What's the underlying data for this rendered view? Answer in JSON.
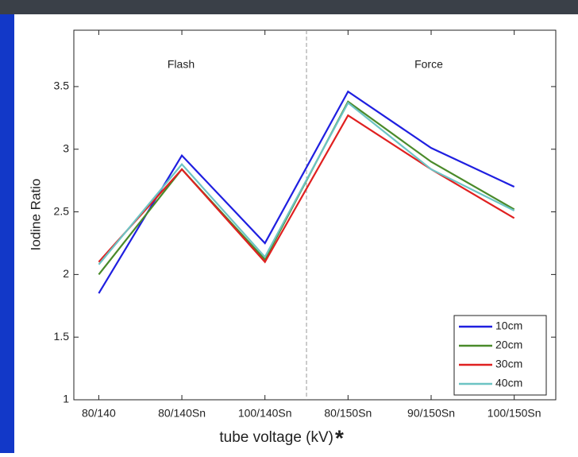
{
  "chart_data": {
    "type": "line",
    "xlabel": "tube voltage (kV)",
    "xlabel_mark": "*",
    "ylabel": "Iodine Ratio",
    "annotations": [
      "Flash",
      "Force"
    ],
    "categories": [
      "80/140",
      "80/140Sn",
      "100/140Sn",
      "80/150Sn",
      "90/150Sn",
      "100/150Sn"
    ],
    "xlim": [
      0.7,
      6.5
    ],
    "divider_x": 3.5,
    "series": [
      {
        "name": "10cm",
        "color": "#1f1fe0",
        "values": [
          1.85,
          2.95,
          2.25,
          3.46,
          3.01,
          2.7
        ]
      },
      {
        "name": "20cm",
        "color": "#4a8a2a",
        "values": [
          2.0,
          2.84,
          2.12,
          3.38,
          2.9,
          2.52
        ]
      },
      {
        "name": "30cm",
        "color": "#e02020",
        "values": [
          2.1,
          2.84,
          2.1,
          3.27,
          2.84,
          2.45
        ]
      },
      {
        "name": "40cm",
        "color": "#6cc4c4",
        "values": [
          2.08,
          2.88,
          2.14,
          3.37,
          2.84,
          2.51
        ]
      }
    ],
    "ylim": [
      1,
      3.95
    ],
    "yticks": [
      1,
      1.5,
      2,
      2.5,
      3,
      3.5
    ],
    "legend": "lower right"
  }
}
